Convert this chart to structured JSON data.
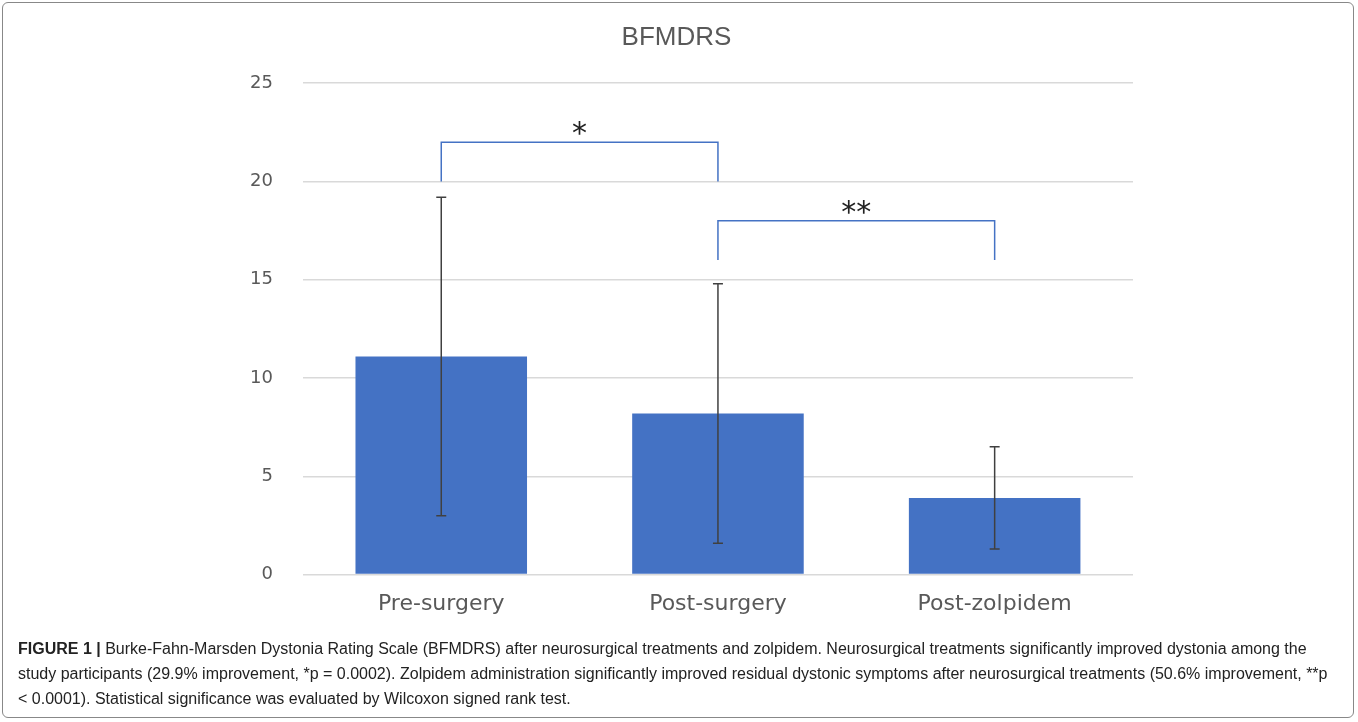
{
  "chart_data": {
    "type": "bar",
    "title": "BFMDRS",
    "categories": [
      "Pre-surgery",
      "Post-surgery",
      "Post-zolpidem"
    ],
    "values": [
      11.1,
      8.2,
      3.9
    ],
    "errors": [
      8.1,
      6.6,
      2.6
    ],
    "color": "#4472c4",
    "ylim": [
      0,
      25
    ],
    "yticks": [
      0,
      5,
      10,
      15,
      20,
      25
    ],
    "grid": "y",
    "legend": false,
    "annotations": [
      "*",
      "**",
      "FIGURE 1 |",
      "Burke-Fahn-Marsden Dystonia Rating Scale (BFMDRS) after neurosurgical treatments and zolpidem. Neurosurgical treatments significantly improved dystonia among the study participants (29.9% improvement, *p = 0.0002). Zolpidem administration significantly improved residual dystonic symptoms after neurosurgical treatments (50.6% improvement, **p < 0.0001). Statistical significance was evaluated by Wilcoxon signed rank test."
    ]
  }
}
